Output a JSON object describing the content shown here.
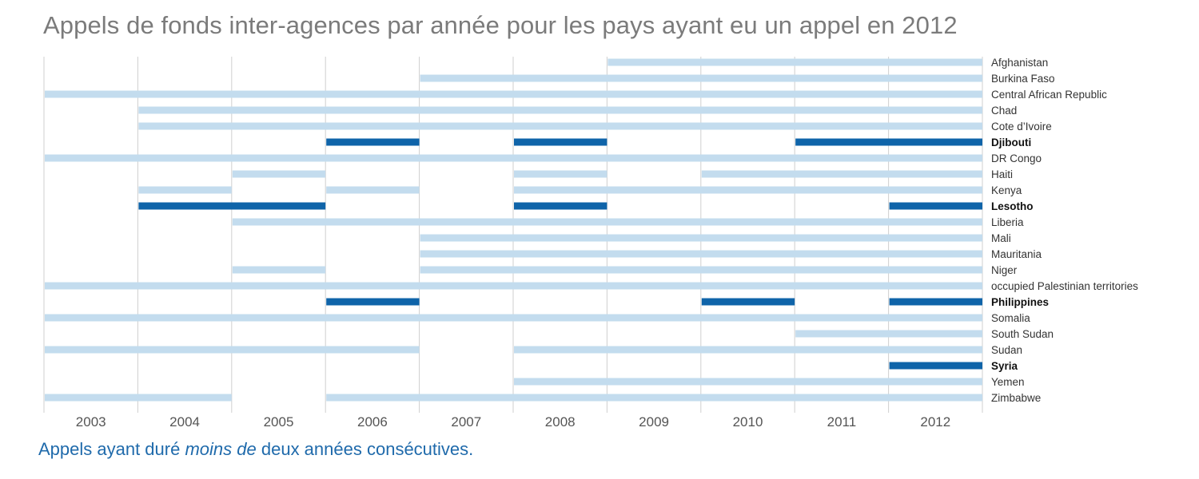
{
  "title": "Appels de fonds inter-agences par année pour les pays ayant eu un appel en 2012",
  "caption": {
    "before": "Appels ayant duré ",
    "emphasis": "moins de",
    "after": " deux années consécutives."
  },
  "colors": {
    "long": "#c3dcee",
    "short": "#0f64a9",
    "grid": "#cfcfcf",
    "tick_label": "#555555",
    "country_label": "#333333"
  },
  "chart_data": {
    "type": "timeline",
    "title": "Appels de fonds inter-agences par année pour les pays ayant eu un appel en 2012",
    "x": [
      "2003",
      "2004",
      "2005",
      "2006",
      "2007",
      "2008",
      "2009",
      "2010",
      "2011",
      "2012"
    ],
    "xlim": [
      2003,
      2012
    ],
    "legend": {
      "short": "Appels ayant duré moins de deux années consécutives.",
      "position": "bottom-left"
    },
    "series": [
      {
        "name": "Afghanistan",
        "highlight": false,
        "ranges": [
          [
            2009,
            2012
          ]
        ]
      },
      {
        "name": "Burkina Faso",
        "highlight": false,
        "ranges": [
          [
            2007,
            2012
          ]
        ]
      },
      {
        "name": "Central African Republic",
        "highlight": false,
        "ranges": [
          [
            2003,
            2012
          ]
        ]
      },
      {
        "name": "Chad",
        "highlight": false,
        "ranges": [
          [
            2004,
            2012
          ]
        ]
      },
      {
        "name": "Cote d’Ivoire",
        "highlight": false,
        "ranges": [
          [
            2004,
            2012
          ]
        ]
      },
      {
        "name": "Djibouti",
        "highlight": true,
        "ranges": [
          [
            2006,
            2006
          ],
          [
            2008,
            2008
          ],
          [
            2011,
            2012
          ]
        ]
      },
      {
        "name": "DR Congo",
        "highlight": false,
        "ranges": [
          [
            2003,
            2012
          ]
        ]
      },
      {
        "name": "Haiti",
        "highlight": false,
        "ranges": [
          [
            2005,
            2005
          ],
          [
            2008,
            2008
          ],
          [
            2010,
            2012
          ]
        ]
      },
      {
        "name": "Kenya",
        "highlight": false,
        "ranges": [
          [
            2004,
            2004
          ],
          [
            2006,
            2006
          ],
          [
            2008,
            2012
          ]
        ]
      },
      {
        "name": "Lesotho",
        "highlight": true,
        "ranges": [
          [
            2004,
            2005
          ],
          [
            2008,
            2008
          ],
          [
            2012,
            2012
          ]
        ]
      },
      {
        "name": "Liberia",
        "highlight": false,
        "ranges": [
          [
            2005,
            2012
          ]
        ]
      },
      {
        "name": "Mali",
        "highlight": false,
        "ranges": [
          [
            2007,
            2012
          ]
        ]
      },
      {
        "name": "Mauritania",
        "highlight": false,
        "ranges": [
          [
            2007,
            2012
          ]
        ]
      },
      {
        "name": "Niger",
        "highlight": false,
        "ranges": [
          [
            2005,
            2005
          ],
          [
            2007,
            2012
          ]
        ]
      },
      {
        "name": "occupied Palestinian territories",
        "highlight": false,
        "ranges": [
          [
            2003,
            2012
          ]
        ]
      },
      {
        "name": "Philippines",
        "highlight": true,
        "ranges": [
          [
            2006,
            2006
          ],
          [
            2010,
            2010
          ],
          [
            2012,
            2012
          ]
        ]
      },
      {
        "name": "Somalia",
        "highlight": false,
        "ranges": [
          [
            2003,
            2012
          ]
        ]
      },
      {
        "name": "South Sudan",
        "highlight": false,
        "ranges": [
          [
            2011,
            2012
          ]
        ]
      },
      {
        "name": "Sudan",
        "highlight": false,
        "ranges": [
          [
            2003,
            2006
          ],
          [
            2008,
            2012
          ]
        ]
      },
      {
        "name": "Syria",
        "highlight": true,
        "ranges": [
          [
            2012,
            2012
          ]
        ]
      },
      {
        "name": "Yemen",
        "highlight": false,
        "ranges": [
          [
            2008,
            2012
          ]
        ]
      },
      {
        "name": "Zimbabwe",
        "highlight": false,
        "ranges": [
          [
            2003,
            2004
          ],
          [
            2006,
            2012
          ]
        ]
      }
    ]
  }
}
